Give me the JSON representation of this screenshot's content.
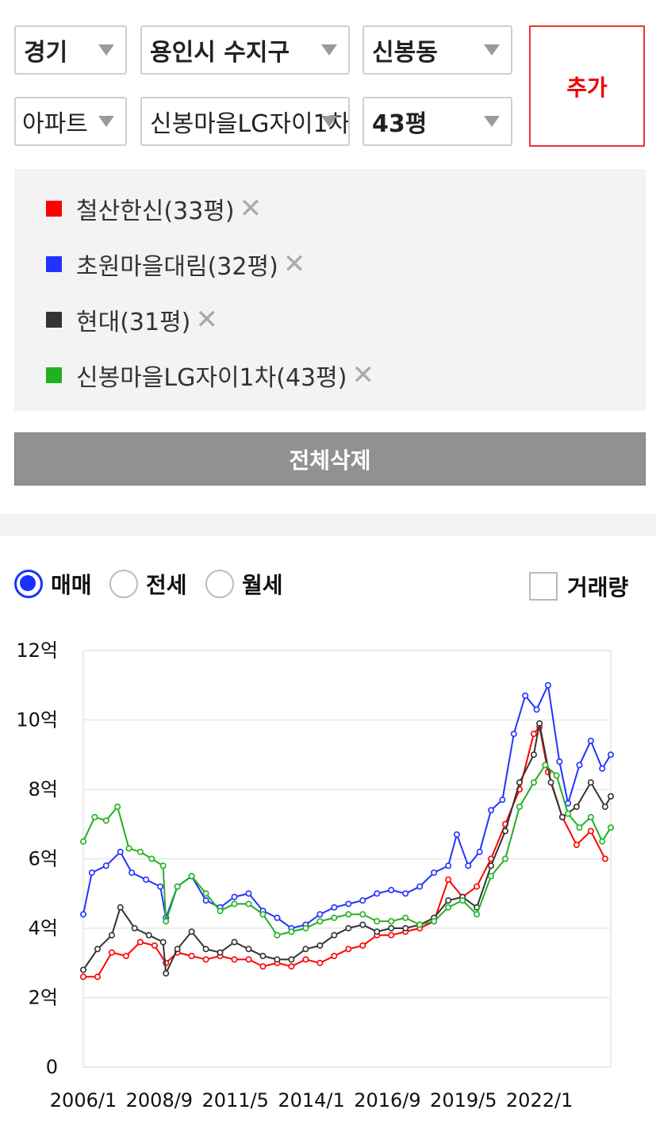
{
  "filters": {
    "province": "경기",
    "city": "용인시 수지구",
    "dong": "신봉동",
    "type": "아파트",
    "complex": "신봉마을LG자이1차",
    "size": "43평",
    "add_label": "추가"
  },
  "selected": [
    {
      "label": "철산한신(33평)",
      "color": "#ff0000"
    },
    {
      "label": "초원마을대림(32평)",
      "color": "#2233ff"
    },
    {
      "label": "현대(31평)",
      "color": "#333333"
    },
    {
      "label": "신봉마을LG자이1차(43평)",
      "color": "#22b022"
    }
  ],
  "clear_all_label": "전체삭제",
  "deal_types": [
    {
      "label": "매매",
      "selected": true
    },
    {
      "label": "전세",
      "selected": false
    },
    {
      "label": "월세",
      "selected": false
    }
  ],
  "volume_label": "거래량",
  "volume_checked": false,
  "chart_data": {
    "type": "line",
    "xlabel": "",
    "ylabel": "",
    "y_ticks": [
      "0",
      "2억",
      "4억",
      "6억",
      "8억",
      "10억",
      "12억"
    ],
    "ylim": [
      0,
      12
    ],
    "x_ticks": [
      "2006/1",
      "2008/9",
      "2011/5",
      "2014/1",
      "2016/9",
      "2019/5",
      "2022/1"
    ],
    "x_tick_values": [
      2006.0,
      2008.667,
      2011.333,
      2014.0,
      2016.667,
      2019.333,
      2022.0
    ],
    "xlim": [
      2006.0,
      2024.5
    ],
    "grid": true,
    "series": [
      {
        "name": "철산한신(33평)",
        "color": "#ff0000",
        "x": [
          2006.0,
          2006.5,
          2007.0,
          2007.5,
          2008.0,
          2008.5,
          2008.9,
          2009.3,
          2009.8,
          2010.3,
          2010.8,
          2011.3,
          2011.8,
          2012.3,
          2012.8,
          2013.3,
          2013.8,
          2014.3,
          2014.8,
          2015.3,
          2015.8,
          2016.3,
          2016.8,
          2017.3,
          2017.8,
          2018.3,
          2018.8,
          2019.3,
          2019.8,
          2020.3,
          2020.8,
          2021.3,
          2021.8,
          2022.0,
          2022.3,
          2022.8,
          2023.3,
          2023.8,
          2024.3
        ],
        "y": [
          2.6,
          2.6,
          3.3,
          3.2,
          3.6,
          3.5,
          3.0,
          3.3,
          3.2,
          3.1,
          3.2,
          3.1,
          3.1,
          2.9,
          3.0,
          2.9,
          3.1,
          3.0,
          3.2,
          3.4,
          3.5,
          3.8,
          3.8,
          3.9,
          4.0,
          4.2,
          5.4,
          4.9,
          5.2,
          6.0,
          7.0,
          8.0,
          9.6,
          9.8,
          8.5,
          7.2,
          6.4,
          6.8,
          6.0
        ]
      },
      {
        "name": "초원마을대림(32평)",
        "color": "#2233ff",
        "x": [
          2006.0,
          2006.3,
          2006.8,
          2007.3,
          2007.7,
          2008.2,
          2008.7,
          2008.9,
          2009.3,
          2009.8,
          2010.3,
          2010.8,
          2011.3,
          2011.8,
          2012.3,
          2012.8,
          2013.3,
          2013.8,
          2014.3,
          2014.8,
          2015.3,
          2015.8,
          2016.3,
          2016.8,
          2017.3,
          2017.8,
          2018.3,
          2018.8,
          2019.1,
          2019.5,
          2019.9,
          2020.3,
          2020.7,
          2021.1,
          2021.5,
          2021.9,
          2022.3,
          2022.7,
          2023.0,
          2023.4,
          2023.8,
          2024.2,
          2024.5
        ],
        "y": [
          4.4,
          5.6,
          5.8,
          6.2,
          5.6,
          5.4,
          5.2,
          4.3,
          5.2,
          5.5,
          4.8,
          4.6,
          4.9,
          5.0,
          4.5,
          4.3,
          4.0,
          4.1,
          4.4,
          4.6,
          4.7,
          4.8,
          5.0,
          5.1,
          5.0,
          5.2,
          5.6,
          5.8,
          6.7,
          5.8,
          6.2,
          7.4,
          7.7,
          9.6,
          10.7,
          10.3,
          11.0,
          8.8,
          7.6,
          8.7,
          9.4,
          8.6,
          9.0
        ]
      },
      {
        "name": "현대(31평)",
        "color": "#333333",
        "x": [
          2006.0,
          2006.5,
          2007.0,
          2007.3,
          2007.8,
          2008.3,
          2008.8,
          2008.9,
          2009.3,
          2009.8,
          2010.3,
          2010.8,
          2011.3,
          2011.8,
          2012.3,
          2012.8,
          2013.3,
          2013.8,
          2014.3,
          2014.8,
          2015.3,
          2015.8,
          2016.3,
          2016.8,
          2017.3,
          2017.8,
          2018.3,
          2018.8,
          2019.3,
          2019.8,
          2020.3,
          2020.8,
          2021.3,
          2021.8,
          2022.0,
          2022.4,
          2022.8,
          2023.3,
          2023.8,
          2024.3,
          2024.5
        ],
        "y": [
          2.8,
          3.4,
          3.8,
          4.6,
          4.0,
          3.8,
          3.6,
          2.7,
          3.4,
          3.9,
          3.4,
          3.3,
          3.6,
          3.4,
          3.2,
          3.1,
          3.1,
          3.4,
          3.5,
          3.8,
          4.0,
          4.1,
          3.9,
          4.0,
          4.0,
          4.1,
          4.3,
          4.8,
          4.9,
          4.6,
          5.8,
          6.8,
          8.2,
          9.0,
          9.9,
          8.2,
          7.2,
          7.5,
          8.2,
          7.5,
          7.8
        ]
      },
      {
        "name": "신봉마을LG자이1차(43평)",
        "color": "#22b022",
        "x": [
          2006.0,
          2006.4,
          2006.8,
          2007.2,
          2007.6,
          2008.0,
          2008.4,
          2008.8,
          2008.9,
          2009.3,
          2009.8,
          2010.3,
          2010.8,
          2011.3,
          2011.8,
          2012.3,
          2012.8,
          2013.3,
          2013.8,
          2014.3,
          2014.8,
          2015.3,
          2015.8,
          2016.3,
          2016.8,
          2017.3,
          2017.8,
          2018.3,
          2018.8,
          2019.3,
          2019.8,
          2020.3,
          2020.8,
          2021.3,
          2021.8,
          2022.2,
          2022.6,
          2023.0,
          2023.4,
          2023.8,
          2024.2,
          2024.5
        ],
        "y": [
          6.5,
          7.2,
          7.1,
          7.5,
          6.3,
          6.2,
          6.0,
          5.8,
          4.2,
          5.2,
          5.5,
          5.0,
          4.5,
          4.7,
          4.7,
          4.4,
          3.8,
          3.9,
          4.0,
          4.2,
          4.3,
          4.4,
          4.4,
          4.2,
          4.2,
          4.3,
          4.1,
          4.2,
          4.6,
          4.8,
          4.4,
          5.5,
          6.0,
          7.5,
          8.2,
          8.7,
          8.4,
          7.3,
          6.9,
          7.2,
          6.5,
          6.9
        ]
      }
    ]
  }
}
